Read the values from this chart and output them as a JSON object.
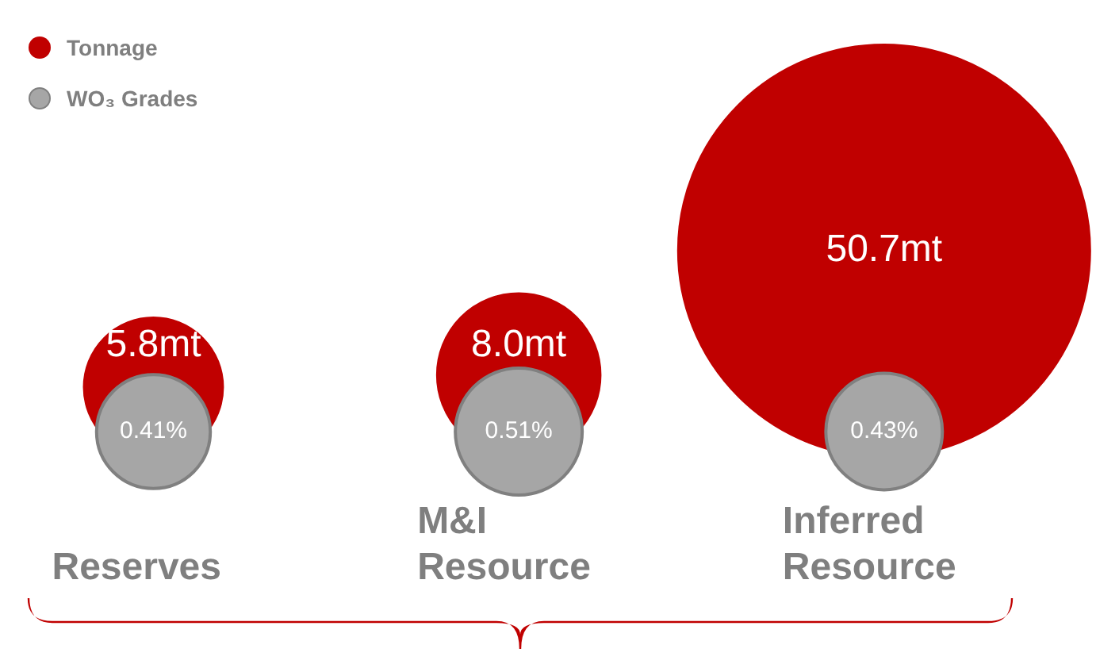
{
  "chart_data": {
    "type": "other",
    "categories": [
      "Reserves",
      "M&I Resource",
      "Inferred Resource"
    ],
    "legend": "top left",
    "series": [
      {
        "name": "Tonnage",
        "color": "#c00000",
        "values": [
          5.8,
          8.0,
          50.7
        ],
        "value_labels": [
          "5.8mt",
          "8.0mt",
          "50.7mt"
        ]
      },
      {
        "name": "WO₃ Grades",
        "color": "#a6a6a6",
        "values": [
          0.41,
          0.51,
          0.43
        ],
        "value_labels": [
          "0.41%",
          "0.51%",
          "0.43%"
        ]
      }
    ]
  }
}
